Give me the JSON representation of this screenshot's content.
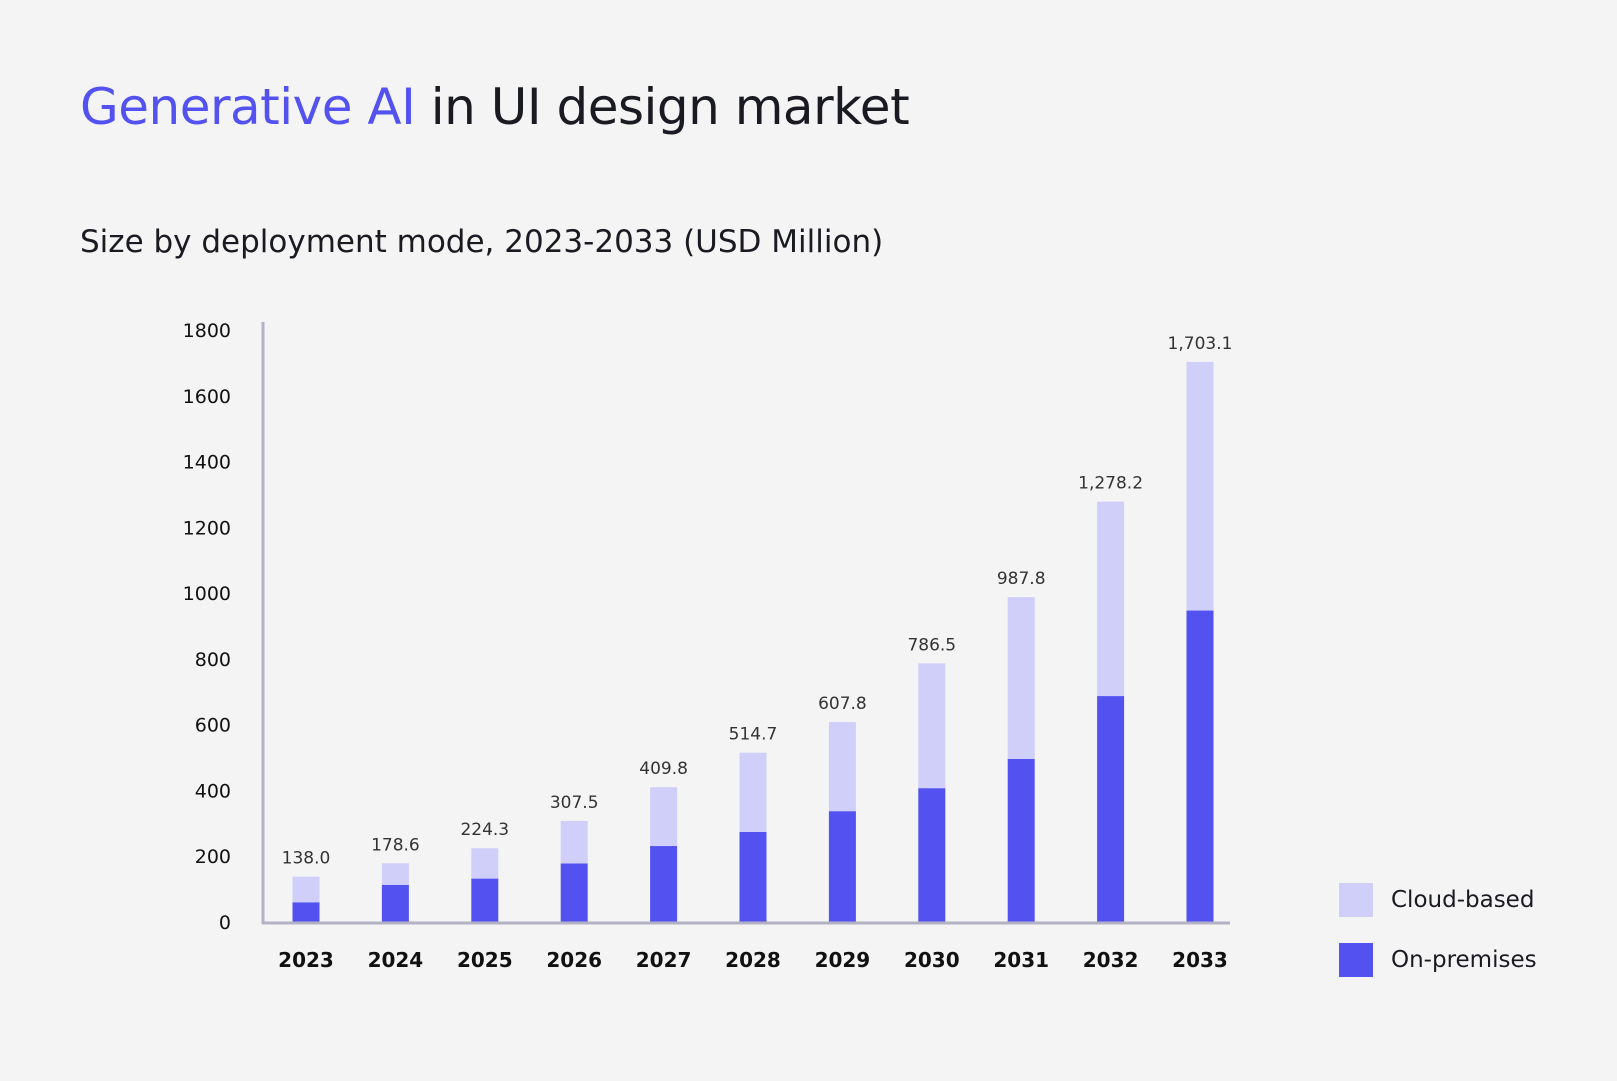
{
  "title": {
    "accent": "Generative AI",
    "rest": " in UI design market"
  },
  "subtitle": "Size by deployment mode, 2023-2033 (USD Million)",
  "colors": {
    "accent": "#5352f0",
    "on_premises": "#5352f0",
    "cloud_based": "#d0cff9",
    "axis": "#b3b1c4"
  },
  "chart_data": {
    "type": "bar",
    "stacked": true,
    "categories": [
      "2023",
      "2024",
      "2025",
      "2026",
      "2027",
      "2028",
      "2029",
      "2030",
      "2031",
      "2032",
      "2033"
    ],
    "series": [
      {
        "name": "On-premises",
        "values": [
          60,
          113,
          132,
          178,
          231,
          274,
          337,
          407,
          496,
          687,
          947
        ]
      },
      {
        "name": "Cloud-based",
        "values": [
          78,
          65.6,
          92.3,
          129.5,
          178.8,
          240.7,
          270.8,
          379.5,
          491.8,
          591.2,
          756.1
        ]
      }
    ],
    "totals": [
      "138.0",
      "178.6",
      "224.3",
      "307.5",
      "409.8",
      "514.7",
      "607.8",
      "786.5",
      "987.8",
      "1,278.2",
      "1,703.1"
    ],
    "yticks": [
      "0",
      "200",
      "400",
      "600",
      "800",
      "1000",
      "1200",
      "1400",
      "1600",
      "1800"
    ],
    "ylim": [
      0,
      1800
    ],
    "grid": false,
    "legend_position": "bottom-right"
  },
  "legend": [
    {
      "label": "Cloud-based",
      "color": "#d0cff9"
    },
    {
      "label": "On-premises",
      "color": "#5352f0"
    }
  ]
}
